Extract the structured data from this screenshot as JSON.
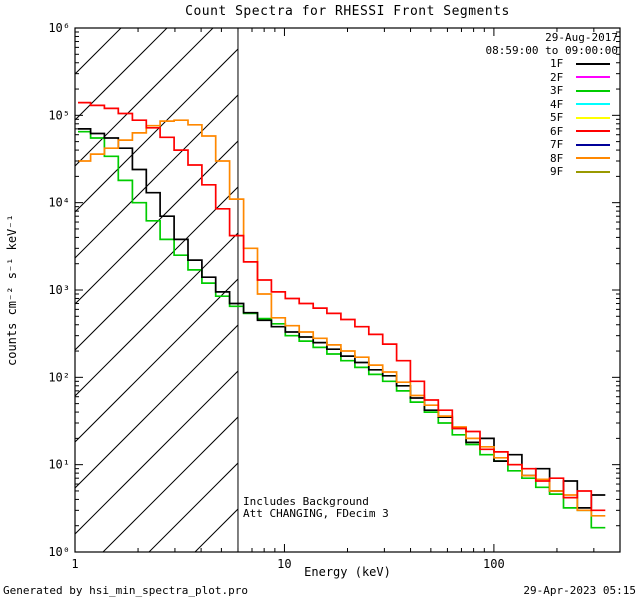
{
  "header": {
    "date": "29-Aug-2017",
    "time_range": "08:59:00 to 09:00:00"
  },
  "annotations": {
    "line1": "Includes Background",
    "line2": "Att CHANGING, FDecim 3"
  },
  "footer": {
    "left": "Generated by hsi_min_spectra_plot.pro",
    "right": "29-Apr-2023 05:15"
  },
  "chart_data": {
    "type": "line",
    "title": "Count Spectra for RHESSI Front Segments",
    "xlabel": "Energy (keV)",
    "ylabel": "counts cm⁻² s⁻¹ keV⁻¹",
    "x_scale": "log",
    "y_scale": "log",
    "xlim": [
      1,
      400
    ],
    "ylim": [
      1,
      1000000
    ],
    "grid": false,
    "legend_position": "top-right",
    "x_ticks": [
      {
        "v": 1,
        "label": "1"
      },
      {
        "v": 10,
        "label": "10"
      },
      {
        "v": 100,
        "label": "100"
      }
    ],
    "y_ticks": [
      {
        "v": 1,
        "label": "10⁰"
      },
      {
        "v": 10,
        "label": "10¹"
      },
      {
        "v": 100,
        "label": "10²"
      },
      {
        "v": 1000,
        "label": "10³"
      },
      {
        "v": 10000,
        "label": "10⁴"
      },
      {
        "v": 100000,
        "label": "10⁵"
      },
      {
        "v": 1000000,
        "label": "10⁶"
      }
    ],
    "hatch_region": {
      "x_start": 1,
      "x_end": 6
    },
    "x": [
      1.1,
      1.28,
      1.49,
      1.74,
      2.03,
      2.36,
      2.75,
      3.21,
      3.74,
      4.35,
      5.07,
      5.91,
      6.89,
      8.02,
      9.35,
      10.9,
      12.7,
      14.8,
      17.2,
      20.1,
      23.4,
      27.3,
      31.8,
      37.0,
      43.1,
      50.3,
      58.6,
      68.3,
      79.5,
      92.7,
      108,
      126,
      147,
      171,
      199,
      232,
      270,
      315
    ],
    "series": [
      {
        "name": "1F",
        "color": "#000000",
        "values": [
          70000,
          62000,
          55000,
          42000,
          24000,
          13000,
          7000,
          3800,
          2200,
          1400,
          950,
          700,
          550,
          450,
          380,
          330,
          290,
          250,
          210,
          175,
          148,
          122,
          104,
          80,
          58,
          42,
          35,
          26,
          18,
          20,
          11,
          13,
          7.5,
          9,
          5,
          6.5,
          3.2,
          4.5
        ]
      },
      {
        "name": "2F",
        "color": "#ff00ff",
        "values": []
      },
      {
        "name": "3F",
        "color": "#00cc00",
        "values": [
          65000,
          55000,
          34000,
          18000,
          10000,
          6200,
          3800,
          2500,
          1700,
          1200,
          850,
          650,
          540,
          470,
          410,
          300,
          260,
          220,
          185,
          155,
          130,
          108,
          90,
          70,
          52,
          40,
          30,
          22,
          17,
          13,
          11,
          8.5,
          7,
          5.5,
          4.6,
          3.2,
          3.0,
          1.9
        ]
      },
      {
        "name": "4F",
        "color": "#00ffff",
        "values": []
      },
      {
        "name": "5F",
        "color": "#ffff00",
        "values": []
      },
      {
        "name": "6F",
        "color": "#ff0000",
        "values": [
          140000,
          130000,
          120000,
          105000,
          88000,
          72000,
          56000,
          40000,
          27000,
          16000,
          8500,
          4200,
          2100,
          1300,
          950,
          800,
          700,
          620,
          540,
          460,
          380,
          310,
          240,
          155,
          90,
          55,
          42,
          26,
          24,
          15,
          14,
          10,
          9,
          6.5,
          7,
          4.2,
          5,
          3.0
        ]
      },
      {
        "name": "7F",
        "color": "#000099",
        "values": []
      },
      {
        "name": "8F",
        "color": "#ff8800",
        "values": [
          30000,
          36000,
          42000,
          52000,
          63000,
          76000,
          86000,
          88000,
          78000,
          58000,
          30000,
          11000,
          3000,
          900,
          480,
          390,
          330,
          280,
          235,
          200,
          170,
          138,
          115,
          88,
          62,
          48,
          36,
          27,
          20,
          16,
          12,
          10,
          7.5,
          6.8,
          5,
          4.5,
          3,
          2.6
        ]
      },
      {
        "name": "9F",
        "color": "#999900",
        "values": []
      }
    ]
  }
}
